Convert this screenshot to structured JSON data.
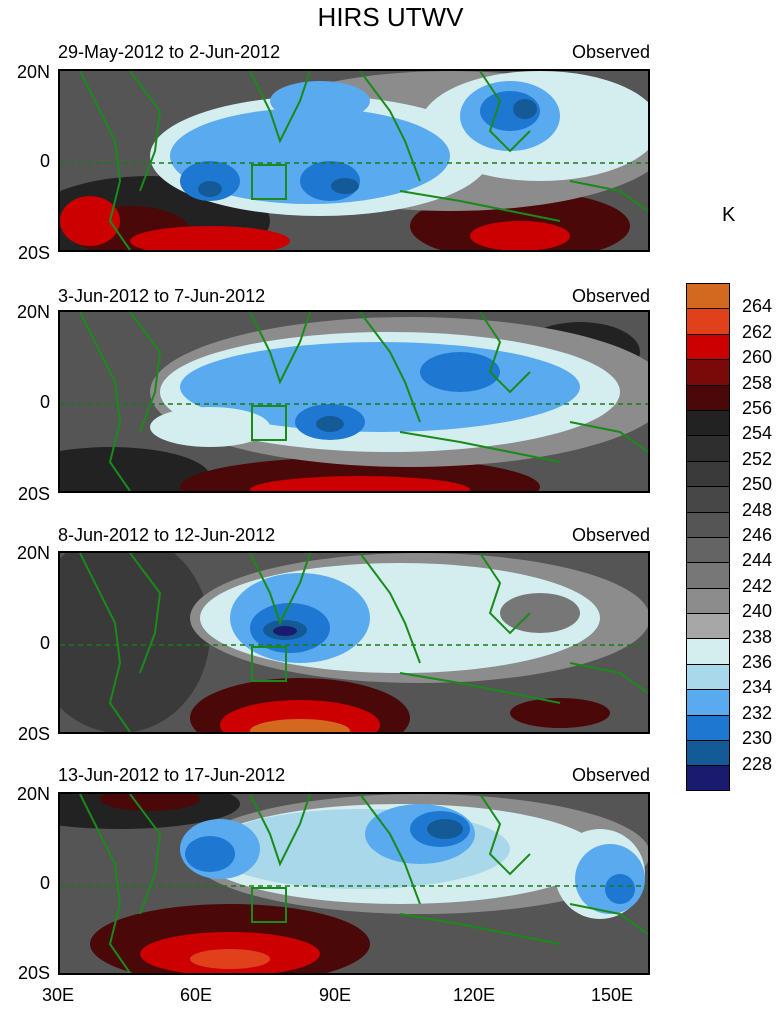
{
  "title": "HIRS UTWV",
  "unit": "K",
  "panels": [
    {
      "period": "29-May-2012 to 2-Jun-2012",
      "label": "Observed"
    },
    {
      "period": "3-Jun-2012 to 7-Jun-2012",
      "label": "Observed"
    },
    {
      "period": "8-Jun-2012 to 12-Jun-2012",
      "label": "Observed"
    },
    {
      "period": "13-Jun-2012 to 17-Jun-2012",
      "label": "Observed"
    }
  ],
  "lat_labels": [
    "20N",
    "0",
    "20S"
  ],
  "lon_labels": [
    "30E",
    "60E",
    "90E",
    "120E",
    "150E"
  ],
  "colorbar": {
    "labels": [
      "264",
      "262",
      "260",
      "258",
      "256",
      "254",
      "252",
      "250",
      "248",
      "246",
      "244",
      "242",
      "240",
      "238",
      "236",
      "234",
      "232",
      "230",
      "228"
    ],
    "colors": [
      "#d2691e",
      "#e0401a",
      "#cc0000",
      "#7a0a0a",
      "#4a0808",
      "#222222",
      "#2e2e2e",
      "#3a3a3a",
      "#474747",
      "#555555",
      "#646464",
      "#777777",
      "#8c8c8c",
      "#a7a7a7",
      "#d4eef0",
      "#a8d8ea",
      "#5aaaf0",
      "#1e78d2",
      "#145a96",
      "#1a1a6e"
    ]
  }
}
